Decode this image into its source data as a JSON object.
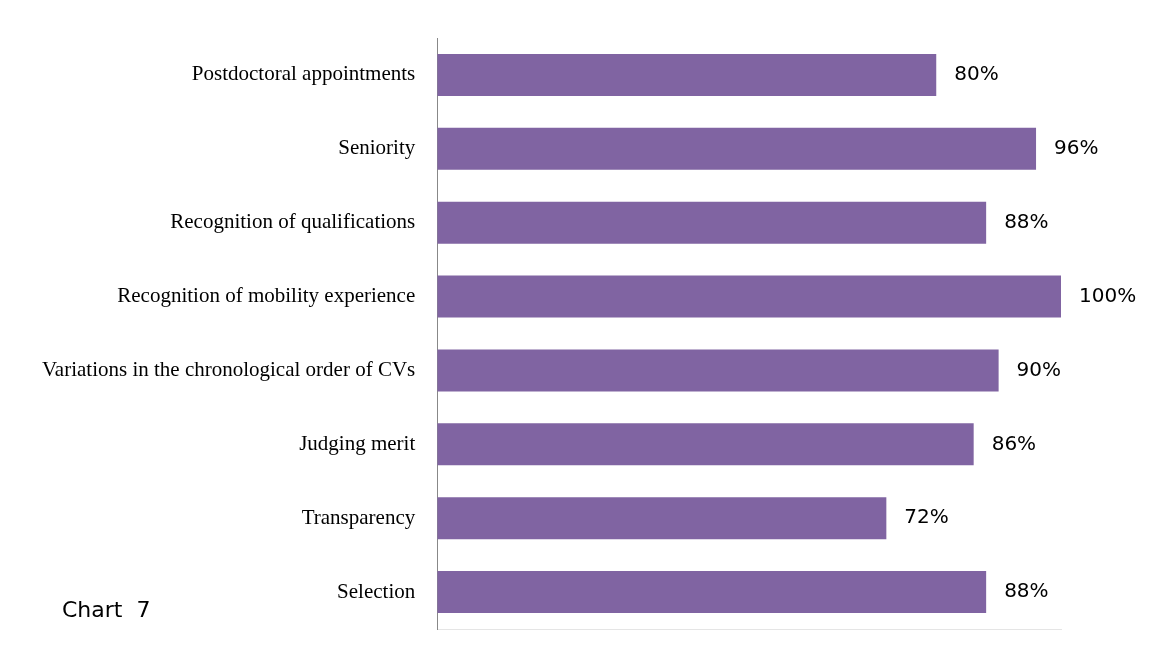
{
  "chart_data": {
    "type": "bar",
    "orientation": "horizontal",
    "relative": false,
    "categories": [
      "Postdoctoral appointments",
      "Seniority",
      "Recognition of qualifications",
      "Recognition of mobility experience",
      "Variations in the chronological order of CVs",
      "Judging merit",
      "Transparency",
      "Selection"
    ],
    "values": [
      80,
      96,
      88,
      100,
      90,
      86,
      72,
      88
    ],
    "value_labels": [
      "80%",
      "96%",
      "88%",
      "100%",
      "90%",
      "86%",
      "72%",
      "88%"
    ],
    "color": "#8064a2",
    "annotations": [
      "Chart  7"
    ]
  }
}
